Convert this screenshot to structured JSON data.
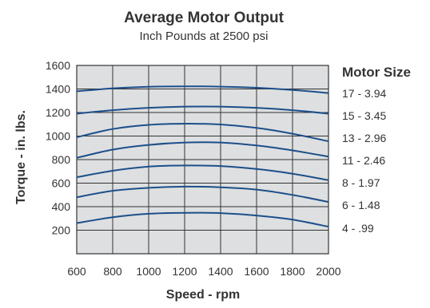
{
  "chart_data": {
    "type": "line",
    "title": "Average Motor Output",
    "subtitle": "Inch Pounds at 2500 psi",
    "xlabel": "Speed - rpm",
    "ylabel": "Torque - in. lbs.",
    "xlim": [
      600,
      2000
    ],
    "ylim": [
      0,
      1600
    ],
    "x_ticks": [
      600,
      800,
      1000,
      1200,
      1400,
      1600,
      1800,
      2000
    ],
    "y_ticks": [
      200,
      400,
      600,
      800,
      1000,
      1200,
      1400,
      1600
    ],
    "grid": true,
    "legend_title": "Motor Size",
    "legend_position": "right",
    "line_color": "#1c4f8a",
    "background_color": "#dedfe1",
    "x": [
      600,
      800,
      1000,
      1200,
      1400,
      1600,
      1800,
      2000
    ],
    "series": [
      {
        "name": "17 - 3.94",
        "values": [
          1380,
          1405,
          1418,
          1422,
          1420,
          1410,
          1392,
          1365
        ]
      },
      {
        "name": "15 - 3.45",
        "values": [
          1190,
          1220,
          1240,
          1250,
          1250,
          1240,
          1220,
          1190
        ]
      },
      {
        "name": "13 - 2.96",
        "values": [
          990,
          1060,
          1095,
          1105,
          1098,
          1070,
          1020,
          955
        ]
      },
      {
        "name": "11 - 2.46",
        "values": [
          815,
          885,
          925,
          945,
          945,
          920,
          878,
          825
        ]
      },
      {
        "name": "8 - 1.97",
        "values": [
          650,
          705,
          740,
          750,
          745,
          720,
          680,
          625
        ]
      },
      {
        "name": "6 - 1.48",
        "values": [
          480,
          535,
          560,
          570,
          565,
          545,
          500,
          440
        ]
      },
      {
        "name": "4 - .99",
        "values": [
          260,
          310,
          340,
          348,
          345,
          325,
          290,
          230
        ]
      }
    ]
  }
}
